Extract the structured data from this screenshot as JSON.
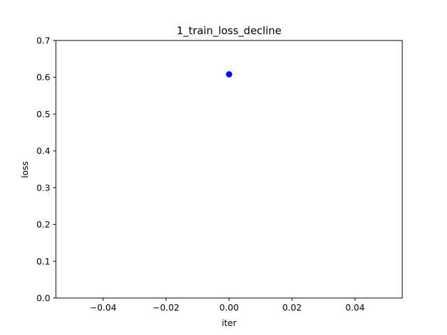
{
  "chart_data": {
    "type": "scatter",
    "title": "1_train_loss_decline",
    "xlabel": "iter",
    "ylabel": "loss",
    "xlim": [
      -0.055,
      0.055
    ],
    "ylim": [
      0,
      0.7
    ],
    "x_ticks": [
      -0.04,
      -0.02,
      0.0,
      0.02,
      0.04
    ],
    "x_tick_labels": [
      "−0.04",
      "−0.02",
      "0.00",
      "0.02",
      "0.04"
    ],
    "y_ticks": [
      0.0,
      0.1,
      0.2,
      0.3,
      0.4,
      0.5,
      0.6,
      0.7
    ],
    "y_tick_labels": [
      "0.0",
      "0.1",
      "0.2",
      "0.3",
      "0.4",
      "0.5",
      "0.6",
      "0.7"
    ],
    "grid": false,
    "series": [
      {
        "color": "#0000ff",
        "points": [
          {
            "x": 0,
            "y": 0.608
          }
        ]
      }
    ]
  }
}
